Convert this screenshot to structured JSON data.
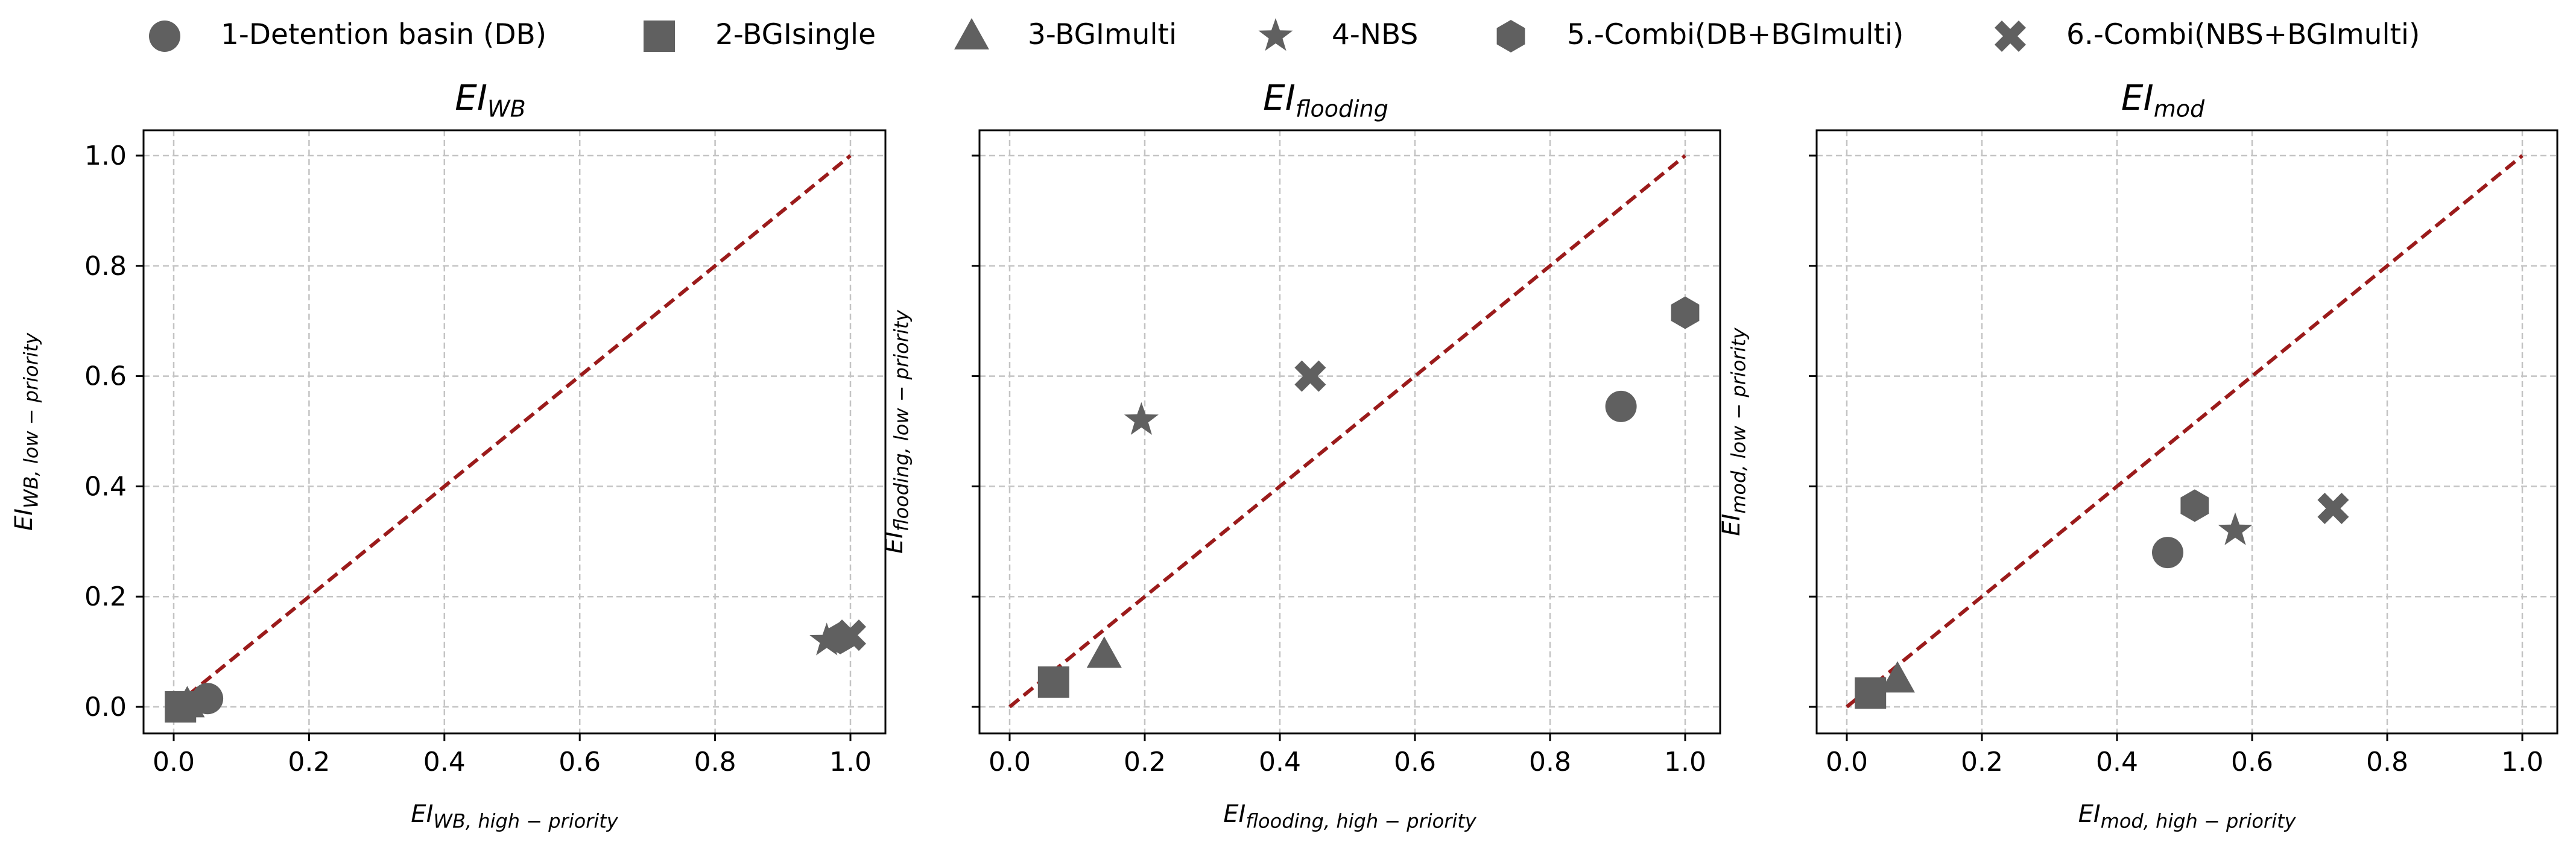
{
  "figure": {
    "marker_color": "#606060",
    "diagonal_color": "#9b1b1b",
    "grid": true,
    "legend_placement": "top"
  },
  "legend": {
    "entries": [
      {
        "label": "1-Detention basin (DB)",
        "marker": "circle"
      },
      {
        "label": "2-BGIsingle",
        "marker": "square"
      },
      {
        "label": "3-BGImulti",
        "marker": "triangle"
      },
      {
        "label": "4-NBS",
        "marker": "star"
      },
      {
        "label": "5.-Combi(DB+BGImulti)",
        "marker": "hexagon"
      },
      {
        "label": "6.-Combi(NBS+BGImulti)",
        "marker": "x-thick"
      }
    ]
  },
  "chart_data": [
    {
      "type": "scatter",
      "title": {
        "base": "EI",
        "sub": "WB"
      },
      "xlabel": {
        "base": "EI",
        "sub": "WB, high − priority"
      },
      "ylabel": {
        "base": "EI",
        "sub": "WB, low − priority"
      },
      "xlim": [
        0,
        1
      ],
      "ylim": [
        0,
        1
      ],
      "xticks": [
        "0.0",
        "0.2",
        "0.4",
        "0.6",
        "0.8",
        "1.0"
      ],
      "yticks": [
        "0.0",
        "0.2",
        "0.4",
        "0.6",
        "0.8",
        "1.0"
      ],
      "diagonal": [
        [
          0,
          0
        ],
        [
          1,
          1
        ]
      ],
      "points": [
        {
          "series": "1-Detention basin (DB)",
          "marker": "circle",
          "x": 0.05,
          "y": 0.015
        },
        {
          "series": "2-BGIsingle",
          "marker": "square",
          "x": 0.01,
          "y": 0.0
        },
        {
          "series": "3-BGImulti",
          "marker": "triangle",
          "x": 0.02,
          "y": 0.005
        },
        {
          "series": "4-NBS",
          "marker": "star",
          "x": 0.965,
          "y": 0.12
        },
        {
          "series": "5.-Combi(DB+BGImulti)",
          "marker": "hexagon",
          "x": 0.985,
          "y": 0.125
        },
        {
          "series": "6.-Combi(NBS+BGImulti)",
          "marker": "x-thick",
          "x": 1.0,
          "y": 0.13
        }
      ]
    },
    {
      "type": "scatter",
      "title": {
        "base": "EI",
        "sub": "flooding"
      },
      "xlabel": {
        "base": "EI",
        "sub": "flooding, high − priority"
      },
      "ylabel": {
        "base": "EI",
        "sub": "flooding, low − priority"
      },
      "xlim": [
        0,
        1
      ],
      "ylim": [
        0,
        1
      ],
      "xticks": [
        "0.0",
        "0.2",
        "0.4",
        "0.6",
        "0.8",
        "1.0"
      ],
      "yticks": [],
      "diagonal": [
        [
          0,
          0
        ],
        [
          1,
          1
        ]
      ],
      "points": [
        {
          "series": "1-Detention basin (DB)",
          "marker": "circle",
          "x": 0.905,
          "y": 0.545
        },
        {
          "series": "2-BGIsingle",
          "marker": "square",
          "x": 0.065,
          "y": 0.045
        },
        {
          "series": "3-BGImulti",
          "marker": "triangle",
          "x": 0.14,
          "y": 0.095
        },
        {
          "series": "4-NBS",
          "marker": "star",
          "x": 0.195,
          "y": 0.52
        },
        {
          "series": "5.-Combi(DB+BGImulti)",
          "marker": "hexagon",
          "x": 1.0,
          "y": 0.715
        },
        {
          "series": "6.-Combi(NBS+BGImulti)",
          "marker": "x-thick",
          "x": 0.445,
          "y": 0.6
        }
      ]
    },
    {
      "type": "scatter",
      "title": {
        "base": "EI",
        "sub": "mod"
      },
      "xlabel": {
        "base": "EI",
        "sub": "mod, high − priority"
      },
      "ylabel": {
        "base": "EI",
        "sub": "mod, low − priority"
      },
      "xlim": [
        0,
        1
      ],
      "ylim": [
        0,
        1
      ],
      "xticks": [
        "0.0",
        "0.2",
        "0.4",
        "0.6",
        "0.8",
        "1.0"
      ],
      "yticks": [],
      "diagonal": [
        [
          0,
          0
        ],
        [
          1,
          1
        ]
      ],
      "points": [
        {
          "series": "1-Detention basin (DB)",
          "marker": "circle",
          "x": 0.475,
          "y": 0.28
        },
        {
          "series": "2-BGIsingle",
          "marker": "square",
          "x": 0.035,
          "y": 0.025
        },
        {
          "series": "3-BGImulti",
          "marker": "triangle",
          "x": 0.075,
          "y": 0.05
        },
        {
          "series": "4-NBS",
          "marker": "star",
          "x": 0.575,
          "y": 0.32
        },
        {
          "series": "5.-Combi(DB+BGImulti)",
          "marker": "hexagon",
          "x": 0.515,
          "y": 0.365
        },
        {
          "series": "6.-Combi(NBS+BGImulti)",
          "marker": "x-thick",
          "x": 0.72,
          "y": 0.36
        }
      ]
    }
  ]
}
